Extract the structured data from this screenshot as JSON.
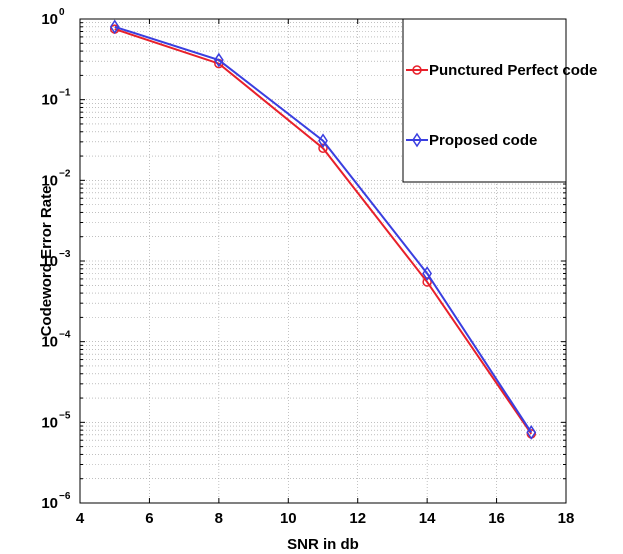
{
  "chart_data": {
    "type": "line",
    "title": "",
    "xlabel": "SNR in db",
    "ylabel": "Codeword Error Rate",
    "xlim": [
      4,
      18
    ],
    "ylim": [
      1e-06,
      1
    ],
    "yscale": "log",
    "grid": true,
    "legend_position": "top-right",
    "x_ticks": [
      {
        "value": 4,
        "label": "4"
      },
      {
        "value": 6,
        "label": "6"
      },
      {
        "value": 8,
        "label": "8"
      },
      {
        "value": 10,
        "label": "10"
      },
      {
        "value": 12,
        "label": "12"
      },
      {
        "value": 14,
        "label": "14"
      },
      {
        "value": 16,
        "label": "16"
      },
      {
        "value": 18,
        "label": "18"
      }
    ],
    "y_ticks": [
      {
        "exponent": 0,
        "base": "10",
        "exp": "0"
      },
      {
        "exponent": -1,
        "base": "10",
        "exp": "−1"
      },
      {
        "exponent": -2,
        "base": "10",
        "exp": "−2"
      },
      {
        "exponent": -3,
        "base": "10",
        "exp": "−3"
      },
      {
        "exponent": -4,
        "base": "10",
        "exp": "−4"
      },
      {
        "exponent": -5,
        "base": "10",
        "exp": "−5"
      },
      {
        "exponent": -6,
        "base": "10",
        "exp": "−6"
      }
    ],
    "series": [
      {
        "name": "Punctured Perfect code",
        "color": "#e8202a",
        "marker": "circle",
        "x": [
          5,
          8,
          11,
          14,
          17
        ],
        "y": [
          0.75,
          0.28,
          0.025,
          0.00055,
          7.2e-06
        ]
      },
      {
        "name": "Proposed code",
        "color": "#3a3fe0",
        "marker": "diamond",
        "x": [
          5,
          8,
          11,
          14,
          17
        ],
        "y": [
          0.8,
          0.31,
          0.031,
          0.0007,
          7.5e-06
        ]
      }
    ]
  }
}
